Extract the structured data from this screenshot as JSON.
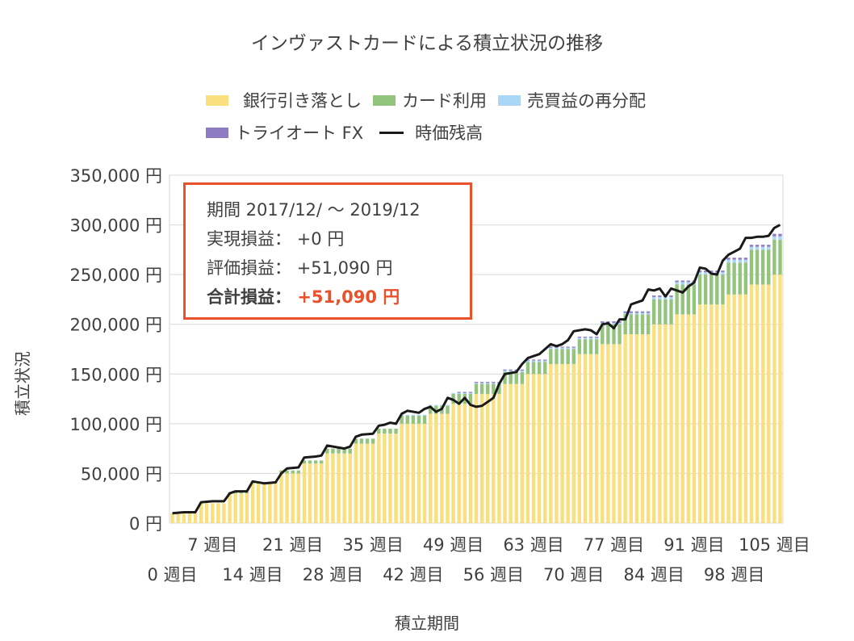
{
  "chart_data": {
    "type": "bar",
    "subtype": "stacked-bar-with-line",
    "title": "インヴァストカードによる積立状況の推移",
    "ylabel": "積立状況",
    "xlabel": "積立期間",
    "ylim": [
      0,
      350000
    ],
    "ytick_values": [
      0,
      50000,
      100000,
      150000,
      200000,
      250000,
      300000,
      350000
    ],
    "ytick_labels": [
      "0 円",
      "50,000 円",
      "100,000 円",
      "150,000 円",
      "200,000 円",
      "250,000 円",
      "300,000 円",
      "350,000 円"
    ],
    "xtick_labels_row1": [
      {
        "week": 7,
        "label": "7 週目"
      },
      {
        "week": 21,
        "label": "21 週目"
      },
      {
        "week": 35,
        "label": "35 週目"
      },
      {
        "week": 49,
        "label": "49 週目"
      },
      {
        "week": 63,
        "label": "63 週目"
      },
      {
        "week": 77,
        "label": "77 週目"
      },
      {
        "week": 91,
        "label": "91 週目"
      },
      {
        "week": 105,
        "label": "105 週目"
      }
    ],
    "xtick_labels_row2": [
      {
        "week": 0,
        "label": "0 週目"
      },
      {
        "week": 14,
        "label": "14 週目"
      },
      {
        "week": 28,
        "label": "28 週目"
      },
      {
        "week": 42,
        "label": "42 週目"
      },
      {
        "week": 56,
        "label": "56 週目"
      },
      {
        "week": 70,
        "label": "70 週目"
      },
      {
        "week": 84,
        "label": "84 週目"
      },
      {
        "week": 98,
        "label": "98 週目"
      }
    ],
    "bank_steps": [
      [
        0,
        10000
      ],
      [
        5,
        20000
      ],
      [
        10,
        30000
      ],
      [
        14,
        40000
      ],
      [
        19,
        50000
      ],
      [
        23,
        60000
      ],
      [
        27,
        70000
      ],
      [
        32,
        80000
      ],
      [
        36,
        90000
      ],
      [
        40,
        100000
      ],
      [
        45,
        110000
      ],
      [
        49,
        120000
      ],
      [
        53,
        130000
      ],
      [
        58,
        140000
      ],
      [
        62,
        150000
      ],
      [
        66,
        160000
      ],
      [
        71,
        170000
      ],
      [
        75,
        180000
      ],
      [
        79,
        190000
      ],
      [
        84,
        200000
      ],
      [
        88,
        210000
      ],
      [
        92,
        220000
      ],
      [
        97,
        230000
      ],
      [
        101,
        240000
      ],
      [
        105,
        250000
      ]
    ],
    "card_steps": [
      [
        0,
        0
      ],
      [
        10,
        1000
      ],
      [
        19,
        3000
      ],
      [
        27,
        5000
      ],
      [
        40,
        8000
      ],
      [
        49,
        10000
      ],
      [
        58,
        12000
      ],
      [
        66,
        15000
      ],
      [
        75,
        20000
      ],
      [
        84,
        25000
      ],
      [
        88,
        30000
      ],
      [
        97,
        32000
      ],
      [
        101,
        35000
      ],
      [
        105,
        35000
      ]
    ],
    "resale_steps": [
      [
        0,
        0
      ],
      [
        40,
        1000
      ],
      [
        58,
        1500
      ],
      [
        84,
        2500
      ],
      [
        97,
        3000
      ],
      [
        105,
        3500
      ]
    ],
    "trioauto_steps": [
      [
        0,
        0
      ],
      [
        50,
        1000
      ],
      [
        75,
        1500
      ],
      [
        97,
        2000
      ],
      [
        105,
        2500
      ]
    ],
    "market_value_points": [
      [
        0,
        10000
      ],
      [
        2,
        11000
      ],
      [
        4,
        11000
      ],
      [
        5,
        21000
      ],
      [
        7,
        22000
      ],
      [
        9,
        22000
      ],
      [
        10,
        30000
      ],
      [
        11,
        32000
      ],
      [
        13,
        32000
      ],
      [
        14,
        42000
      ],
      [
        16,
        40000
      ],
      [
        18,
        41000
      ],
      [
        19,
        50000
      ],
      [
        20,
        55000
      ],
      [
        22,
        56000
      ],
      [
        23,
        66000
      ],
      [
        25,
        67000
      ],
      [
        26,
        68000
      ],
      [
        27,
        78000
      ],
      [
        29,
        76000
      ],
      [
        30,
        75000
      ],
      [
        31,
        77000
      ],
      [
        32,
        87000
      ],
      [
        33,
        89000
      ],
      [
        35,
        90000
      ],
      [
        36,
        98000
      ],
      [
        37,
        99000
      ],
      [
        38,
        101000
      ],
      [
        39,
        100000
      ],
      [
        40,
        110000
      ],
      [
        41,
        113000
      ],
      [
        43,
        111000
      ],
      [
        44,
        115000
      ],
      [
        45,
        117000
      ],
      [
        46,
        112000
      ],
      [
        47,
        115000
      ],
      [
        48,
        126000
      ],
      [
        49,
        124000
      ],
      [
        50,
        120000
      ],
      [
        51,
        126000
      ],
      [
        52,
        119000
      ],
      [
        53,
        117000
      ],
      [
        54,
        118000
      ],
      [
        55,
        122000
      ],
      [
        56,
        126000
      ],
      [
        57,
        140000
      ],
      [
        58,
        150000
      ],
      [
        60,
        152000
      ],
      [
        61,
        160000
      ],
      [
        62,
        166000
      ],
      [
        63,
        168000
      ],
      [
        64,
        170000
      ],
      [
        65,
        175000
      ],
      [
        66,
        180000
      ],
      [
        67,
        178000
      ],
      [
        68,
        180000
      ],
      [
        69,
        184000
      ],
      [
        70,
        193000
      ],
      [
        72,
        195000
      ],
      [
        73,
        194000
      ],
      [
        74,
        190000
      ],
      [
        75,
        200000
      ],
      [
        76,
        201000
      ],
      [
        77,
        196000
      ],
      [
        78,
        205000
      ],
      [
        79,
        205000
      ],
      [
        80,
        220000
      ],
      [
        81,
        222000
      ],
      [
        82,
        224000
      ],
      [
        83,
        235000
      ],
      [
        84,
        234000
      ],
      [
        85,
        236000
      ],
      [
        86,
        228000
      ],
      [
        87,
        236000
      ],
      [
        88,
        234000
      ],
      [
        89,
        232000
      ],
      [
        90,
        238000
      ],
      [
        91,
        242000
      ],
      [
        92,
        257000
      ],
      [
        93,
        256000
      ],
      [
        94,
        251000
      ],
      [
        95,
        250000
      ],
      [
        96,
        264000
      ],
      [
        97,
        270000
      ],
      [
        98,
        273000
      ],
      [
        99,
        276000
      ],
      [
        100,
        287000
      ],
      [
        101,
        287000
      ],
      [
        102,
        288000
      ],
      [
        103,
        288000
      ],
      [
        104,
        289000
      ],
      [
        105,
        297000
      ],
      [
        106,
        300000
      ]
    ],
    "series_colors": {
      "bank": "#f9df7e",
      "card": "#93c47d",
      "resale": "#a9d7f5",
      "trioauto": "#8e7cc3",
      "market_value": "#1a1a1a"
    }
  },
  "legend": {
    "bank": "銀行引き落とし",
    "card": "カード利用",
    "resale": "売買益の再分配",
    "trioauto": "トライオート FX",
    "market_value": "時価残高"
  },
  "info_box": {
    "period": "期間 2017/12/ ～ 2019/12",
    "realized_label": "実現損益：",
    "realized_value": "+0 円",
    "unrealized_label": "評価損益：",
    "unrealized_value": "+51,090 円",
    "total_label": "合計損益：",
    "total_value": "+51,090 円"
  }
}
